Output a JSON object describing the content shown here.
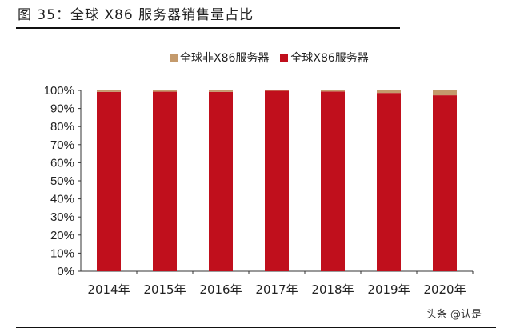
{
  "title": "图 35：全球 X86 服务器销售量占比",
  "watermark": "头条 @认是",
  "chart_data": {
    "type": "bar",
    "stacked": true,
    "title": "图 35：全球 X86 服务器销售量占比",
    "categories": [
      "2014年",
      "2015年",
      "2016年",
      "2017年",
      "2018年",
      "2019年",
      "2020年"
    ],
    "series": [
      {
        "name": "全球X86服务器",
        "color": "#c00f1c",
        "values": [
          99.2,
          99.3,
          99.2,
          99.8,
          99.4,
          98.6,
          97.3
        ]
      },
      {
        "name": "全球非X86服务器",
        "color": "#c49a6c",
        "values": [
          0.8,
          0.7,
          0.8,
          0.2,
          0.6,
          1.4,
          2.7
        ]
      }
    ],
    "legend_order": [
      1,
      0
    ],
    "yticks": [
      "0%",
      "10%",
      "20%",
      "30%",
      "40%",
      "50%",
      "60%",
      "70%",
      "80%",
      "90%",
      "100%"
    ],
    "ylim": [
      0,
      100
    ],
    "xlabel": "",
    "ylabel": "",
    "grid": false,
    "legend_position": "top-center"
  }
}
